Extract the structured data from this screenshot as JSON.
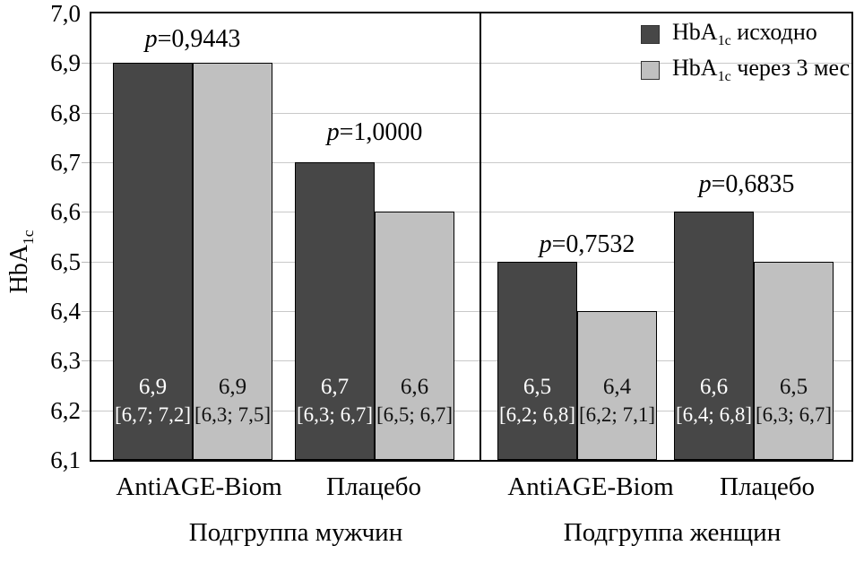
{
  "chart_data": {
    "type": "bar",
    "title": "",
    "ylabel": "HbA1c",
    "ylabel_parts": {
      "base": "HbA",
      "sub": "1c"
    },
    "ylim": [
      6.1,
      7.0
    ],
    "ytick_step": 0.1,
    "yticks": [
      {
        "label": "7,0",
        "value": 7.0
      },
      {
        "label": "6,9",
        "value": 6.9
      },
      {
        "label": "6,8",
        "value": 6.8
      },
      {
        "label": "6,7",
        "value": 6.7
      },
      {
        "label": "6,6",
        "value": 6.6
      },
      {
        "label": "6,5",
        "value": 6.5
      },
      {
        "label": "6,4",
        "value": 6.4
      },
      {
        "label": "6,3",
        "value": 6.3
      },
      {
        "label": "6,2",
        "value": 6.2
      },
      {
        "label": "6,1",
        "value": 6.1
      }
    ],
    "grid": "horizontal",
    "legend_position": "top-right-inside",
    "series": [
      {
        "name": "HbA1c исходно",
        "name_parts": {
          "base": "HbA",
          "sub": "1c",
          "rest": " исходно"
        },
        "color": "#474747",
        "value_label_color": "#ffffff",
        "values_by_group": [
          6.9,
          6.7,
          6.5,
          6.6
        ]
      },
      {
        "name": "HbA1c через 3 мес",
        "name_parts": {
          "base": "HbA",
          "sub": "1c",
          "rest": " через 3 мес"
        },
        "color": "#c0c0c0",
        "value_label_color": "#111111",
        "values_by_group": [
          6.9,
          6.6,
          6.4,
          6.5
        ]
      }
    ],
    "panels": [
      {
        "title": "Подгруппа мужчин",
        "groups": [
          {
            "category": "AntiAGE-Biom",
            "p_display": "p=0,9443",
            "bars": [
              {
                "series": 0,
                "value": 6.9,
                "value_label": "6,9",
                "ci_label": "[6,7; 7,2]"
              },
              {
                "series": 1,
                "value": 6.9,
                "value_label": "6,9",
                "ci_label": "[6,3; 7,5]"
              }
            ]
          },
          {
            "category": "Плацебо",
            "p_display": "p=1,0000",
            "bars": [
              {
                "series": 0,
                "value": 6.7,
                "value_label": "6,7",
                "ci_label": "[6,3; 6,7]"
              },
              {
                "series": 1,
                "value": 6.6,
                "value_label": "6,6",
                "ci_label": "[6,5; 6,7]"
              }
            ]
          }
        ]
      },
      {
        "title": "Подгруппа женщин",
        "groups": [
          {
            "category": "AntiAGE-Biom",
            "p_display": "p=0,7532",
            "bars": [
              {
                "series": 0,
                "value": 6.5,
                "value_label": "6,5",
                "ci_label": "[6,2; 6,8]"
              },
              {
                "series": 1,
                "value": 6.4,
                "value_label": "6,4",
                "ci_label": "[6,2; 7,1]"
              }
            ]
          },
          {
            "category": "Плацебо",
            "p_display": "p=0,6835",
            "bars": [
              {
                "series": 0,
                "value": 6.6,
                "value_label": "6,6",
                "ci_label": "[6,4; 6,8]"
              },
              {
                "series": 1,
                "value": 6.5,
                "value_label": "6,5",
                "ci_label": "[6,3; 6,7]"
              }
            ]
          }
        ]
      }
    ],
    "colors": {
      "dark_series": "#474747",
      "light_series": "#c0c0c0",
      "grid": "#c9c9c9",
      "axis": "#000000",
      "background": "#ffffff"
    }
  }
}
